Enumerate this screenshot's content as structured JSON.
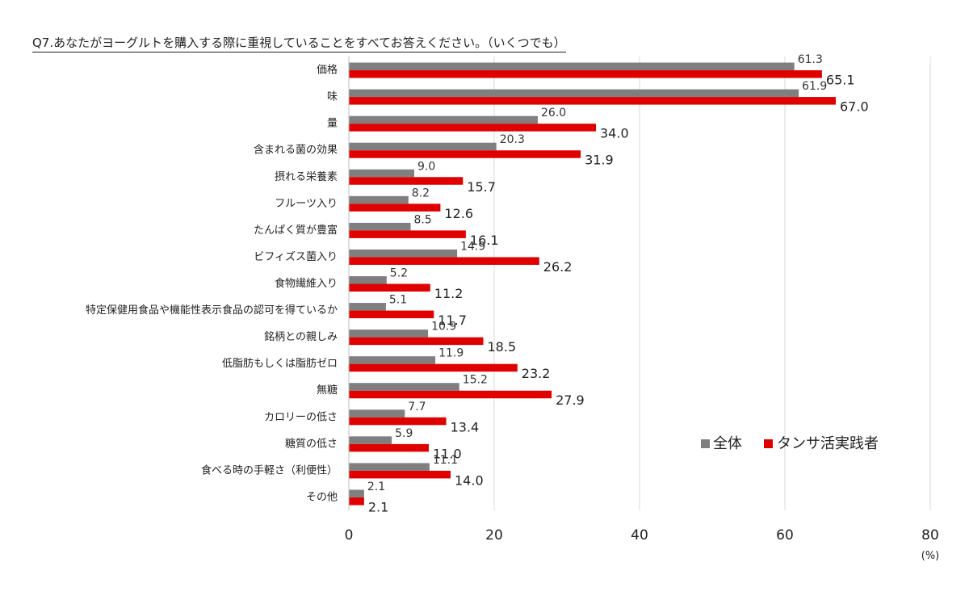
{
  "chart_data": {
    "type": "bar",
    "orientation": "horizontal",
    "title": "Q7.あなたがヨーグルトを購入する際に重視していることをすべてお答えください。（いくつでも）",
    "unit": "(%)",
    "categories": [
      "価格",
      "味",
      "量",
      "含まれる菌の効果",
      "摂れる栄養素",
      "フルーツ入り",
      "たんぱく質が豊富",
      "ビフィズス菌入り",
      "食物繊維入り",
      "特定保健用食品や機能性表示食品の認可を得ているか",
      "銘柄との親しみ",
      "低脂肪もしくは脂肪ゼロ",
      "無糖",
      "カロリーの低さ",
      "糖質の低さ",
      "食べる時の手軽さ（利便性）",
      "その他"
    ],
    "series": [
      {
        "name": "全体",
        "color": "#7f7f7f",
        "values": [
          61.3,
          61.9,
          26.0,
          20.3,
          9.0,
          8.2,
          8.5,
          14.9,
          5.2,
          5.1,
          10.9,
          11.9,
          15.2,
          7.7,
          5.9,
          11.1,
          2.1
        ],
        "labels": [
          "61.3",
          "61.9",
          "26.0",
          "20.3",
          "9.0",
          "8.2",
          "8.5",
          "14.9",
          "5.2",
          "5.1",
          "10.9",
          "11.9",
          "15.2",
          "7.7",
          "5.9",
          "11.1",
          "2.1"
        ]
      },
      {
        "name": "タンサ活実践者",
        "color": "#e00000",
        "values": [
          65.1,
          67.0,
          34.0,
          31.9,
          15.7,
          12.6,
          16.1,
          26.2,
          11.2,
          11.7,
          18.5,
          23.2,
          27.9,
          13.4,
          11.0,
          14.0,
          2.1
        ],
        "labels": [
          "65.1",
          "67.0",
          "34.0",
          "31.9",
          "15.7",
          "12.6",
          "16.1",
          "26.2",
          "11.2",
          "11.7",
          "18.5",
          "23.2",
          "27.9",
          "13.4",
          "11.0",
          "14.0",
          "2.1"
        ]
      }
    ],
    "xlim": [
      0,
      80
    ],
    "xticks": [
      "0",
      "20",
      "40",
      "60",
      "80"
    ],
    "grid": true,
    "legend_position": "bottom-right"
  }
}
